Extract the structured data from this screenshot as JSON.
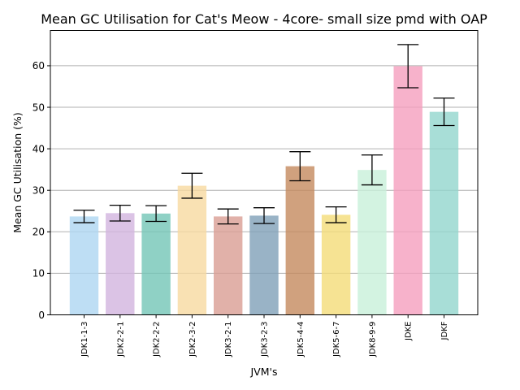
{
  "chart_data": {
    "type": "bar",
    "title": "Mean GC Utilisation for Cat's Meow - 4core- small size pmd with OAP",
    "xlabel": "JVM's",
    "ylabel": "Mean GC Utilisation (%)",
    "ylim": [
      0,
      68.5
    ],
    "yticks": [
      0,
      10,
      20,
      30,
      40,
      50,
      60
    ],
    "grid": "horizontal",
    "categories": [
      "JDK1-1-3",
      "JDK2-2-1",
      "JDK2-2-2",
      "JDK2-3-2",
      "JDK3-2-1",
      "JDK3-2-3",
      "JDK5-4-4",
      "JDK5-6-7",
      "JDK8-9-9",
      "JDKE",
      "JDKF"
    ],
    "values": [
      23.7,
      24.5,
      24.4,
      31.1,
      23.7,
      23.9,
      35.8,
      24.1,
      34.9,
      59.9,
      48.9
    ],
    "errors": [
      1.5,
      1.9,
      1.9,
      3.0,
      1.8,
      1.9,
      3.5,
      1.9,
      3.6,
      5.2,
      3.3
    ],
    "colors": [
      "#aed6f1",
      "#d2b4de",
      "#73c6b6",
      "#f8d9a0",
      "#d99e93",
      "#7fa0b8",
      "#c48a5e",
      "#f4dc78",
      "#c8f0da",
      "#f59fbe",
      "#92d6cd"
    ]
  }
}
